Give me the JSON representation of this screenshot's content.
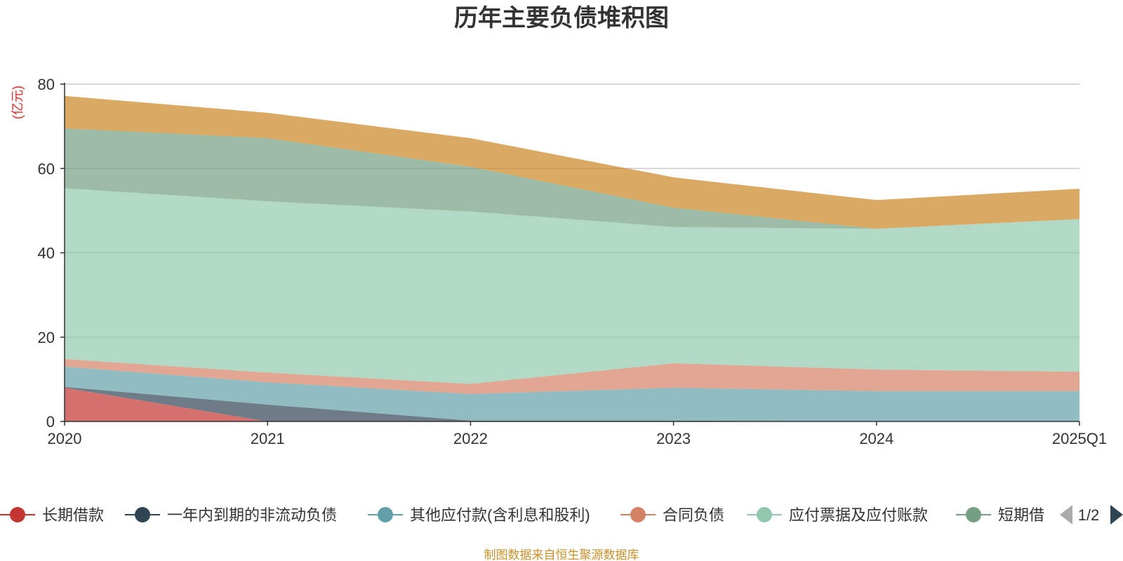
{
  "chart_data": {
    "type": "area",
    "stacked": true,
    "title": "历年主要负债堆积图",
    "ylabel": "亿元",
    "ylim": [
      0,
      80
    ],
    "yticks": [
      0,
      20,
      40,
      60,
      80
    ],
    "categories": [
      "2020",
      "2021",
      "2022",
      "2023",
      "2024",
      "2025Q1"
    ],
    "grid": true,
    "legend_position": "bottom",
    "series": [
      {
        "name": "长期借款",
        "color": "#c23531",
        "values": [
          8.0,
          0.0,
          0.0,
          0.0,
          0.0,
          0.0
        ]
      },
      {
        "name": "一年内到期的非流动负债",
        "color": "#2f4554",
        "values": [
          0.2,
          4.0,
          0.2,
          0.2,
          0.0,
          0.0
        ]
      },
      {
        "name": "其他应付款(含利息和股利)",
        "color": "#61a0a8",
        "values": [
          4.8,
          5.3,
          6.3,
          7.8,
          7.2,
          7.2
        ]
      },
      {
        "name": "合同负债",
        "color": "#d48265",
        "values": [
          1.8,
          2.3,
          2.4,
          5.8,
          5.1,
          4.6
        ]
      },
      {
        "name": "应付票据及应付账款",
        "color": "#91c7ae",
        "values": [
          40.5,
          40.6,
          40.9,
          32.3,
          33.4,
          36.2
        ]
      },
      {
        "name": "短期借款",
        "color": "#749f83",
        "values": [
          14.2,
          15.0,
          10.6,
          4.6,
          0.0,
          0.0
        ]
      },
      {
        "name": "",
        "color": "#ca8622",
        "values": [
          7.7,
          6.0,
          6.8,
          7.2,
          6.8,
          7.2
        ]
      }
    ]
  },
  "legend": {
    "items": [
      "长期借款",
      "一年内到期的非流动负债",
      "其他应付款(含利息和股利)",
      "合同负债",
      "应付票据及应付账款",
      "短期借"
    ],
    "page": "1/2"
  },
  "footer": {
    "source": "制图数据来自恒生聚源数据库"
  }
}
